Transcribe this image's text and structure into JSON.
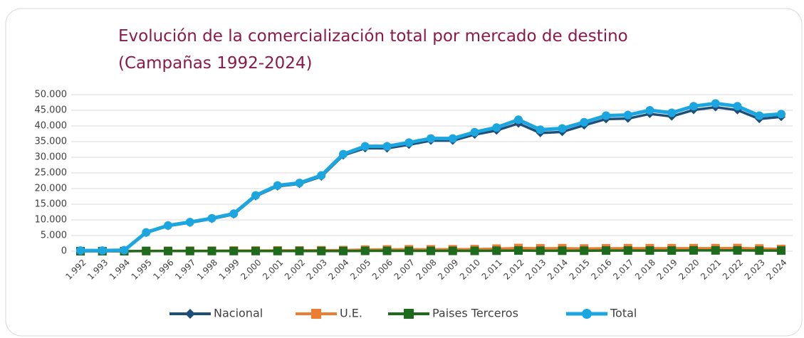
{
  "chart_data": {
    "type": "line",
    "title": "Evolución de la comercialización total por mercado de destino",
    "subtitle": "(Campañas 1992-2024)",
    "categories": [
      "1.992",
      "1.993",
      "1.994",
      "1.995",
      "1.996",
      "1.997",
      "1.998",
      "1.999",
      "2.000",
      "2.001",
      "2.002",
      "2.003",
      "2.004",
      "2.005",
      "2.006",
      "2.007",
      "2.008",
      "2.009",
      "2.010",
      "2.011",
      "2.012",
      "2.013",
      "2.014",
      "2.015",
      "2.016",
      "2.017",
      "2.018",
      "2.019",
      "2.020",
      "2.021",
      "2.022",
      "2.023",
      "2.024"
    ],
    "series": [
      {
        "name": "Nacional",
        "color": "#1f4e79",
        "marker": "diamond",
        "values": [
          200,
          200,
          300,
          5850,
          8050,
          9100,
          10300,
          11750,
          17550,
          20700,
          21500,
          23850,
          30600,
          32900,
          32850,
          34000,
          35300,
          35300,
          37250,
          38550,
          40800,
          37750,
          38100,
          40200,
          42200,
          42350,
          43850,
          43050,
          45100,
          46000,
          45050,
          42250,
          42900
        ]
      },
      {
        "name": "U.E.",
        "color": "#ed7d31",
        "marker": "square",
        "values": [
          0,
          0,
          0,
          100,
          100,
          150,
          150,
          200,
          200,
          250,
          250,
          300,
          350,
          500,
          550,
          600,
          600,
          600,
          650,
          800,
          1000,
          900,
          950,
          850,
          900,
          950,
          950,
          950,
          950,
          950,
          1000,
          850,
          700
        ]
      },
      {
        "name": "Paises Terceros",
        "color": "#1e6b1e",
        "marker": "square",
        "values": [
          0,
          0,
          0,
          50,
          50,
          50,
          50,
          50,
          50,
          50,
          50,
          50,
          50,
          100,
          100,
          100,
          100,
          100,
          100,
          150,
          200,
          150,
          150,
          150,
          200,
          200,
          200,
          200,
          250,
          250,
          250,
          200,
          200
        ]
      },
      {
        "name": "Total",
        "color": "#1ca6df",
        "marker": "circle",
        "values": [
          200,
          200,
          300,
          6000,
          8200,
          9300,
          10500,
          12000,
          17800,
          21000,
          21800,
          24200,
          31000,
          33500,
          33500,
          34700,
          36000,
          36000,
          38000,
          39500,
          42000,
          38800,
          39200,
          41200,
          43300,
          43500,
          45000,
          44200,
          46300,
          47200,
          46300,
          43300,
          43800
        ]
      }
    ],
    "ylim": [
      0,
      50000
    ],
    "yticks": [
      0,
      {
        "value": 5000,
        "label": "5.000"
      },
      {
        "value": 10000,
        "label": "10.000"
      },
      {
        "value": 15000,
        "label": "15.000"
      },
      {
        "value": 20000,
        "label": "20.000"
      },
      {
        "value": 25000,
        "label": "25.000"
      },
      {
        "value": 30000,
        "label": "30.000"
      },
      {
        "value": 35000,
        "label": "35.000"
      },
      {
        "value": 40000,
        "label": "40.000"
      },
      {
        "value": 45000,
        "label": "45.000"
      },
      {
        "value": 50000,
        "label": "50.000"
      }
    ],
    "grid": true,
    "legend": "bottom"
  }
}
